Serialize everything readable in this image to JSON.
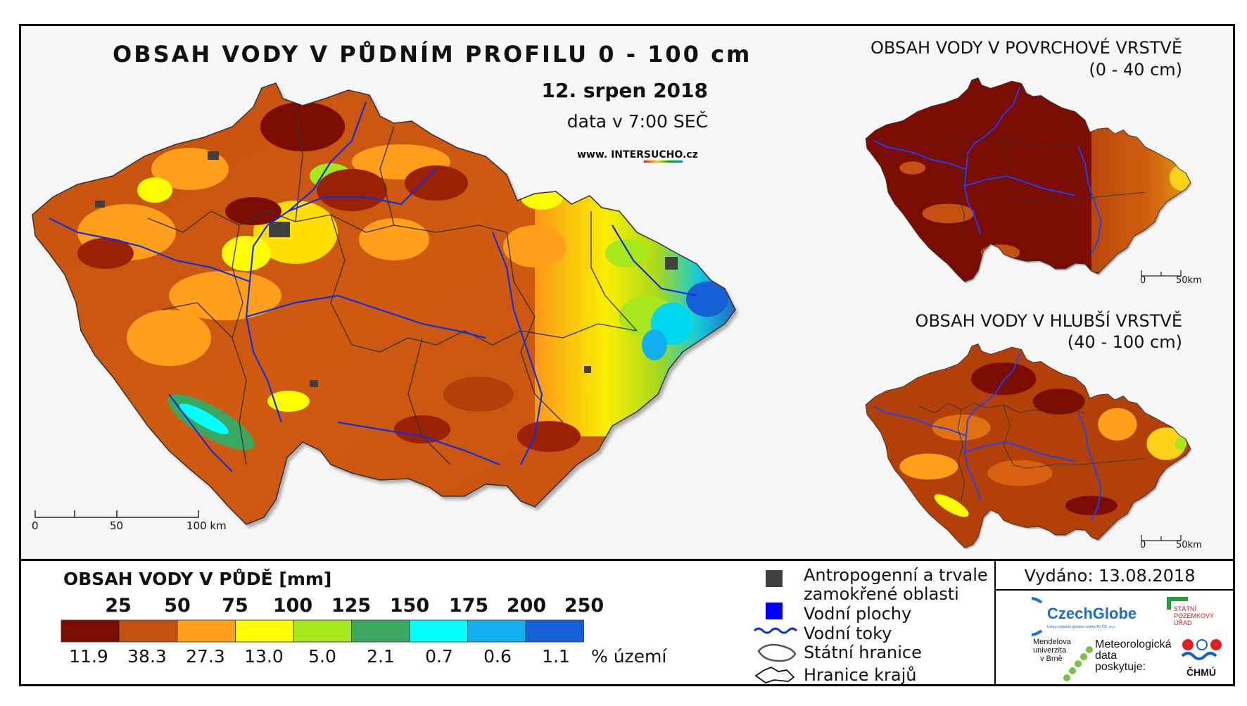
{
  "main_map": {
    "title": "OBSAH VODY V PŮDNÍM PROFILU 0 - 100 cm",
    "date": "12. srpen 2018",
    "time": "data v 7:00 SEČ",
    "website_prefix": "www. INTER",
    "website_emph": "SUCHO",
    "website_suffix": ".cz",
    "scale_labels": [
      "0",
      "50",
      "100 km"
    ]
  },
  "surface_map": {
    "title_line1": "OBSAH VODY V POVRCHOVÉ VRSTVĚ",
    "title_line2": "(0 - 40 cm)",
    "scale_labels": [
      "0",
      "50km"
    ]
  },
  "deep_map": {
    "title_line1": "OBSAH VODY V HLUBŠÍ VRSTVĚ",
    "title_line2": "(40 - 100 cm)",
    "scale_labels": [
      "0",
      "50km"
    ]
  },
  "legend": {
    "title": "OBSAH VODY V PŮDĚ [mm]",
    "breaks": [
      "25",
      "50",
      "75",
      "100",
      "125",
      "150",
      "175",
      "200",
      "250"
    ],
    "classes": [
      {
        "color": "#7a0c02",
        "percent": "11.9"
      },
      {
        "color": "#c4510f",
        "percent": "38.3"
      },
      {
        "color": "#ff9f1a",
        "percent": "27.3"
      },
      {
        "color": "#ffff00",
        "percent": "13.0"
      },
      {
        "color": "#a6e81c",
        "percent": "5.0"
      },
      {
        "color": "#3aa860",
        "percent": "2.1"
      },
      {
        "color": "#00ffff",
        "percent": "0.7"
      },
      {
        "color": "#12b0f0",
        "percent": "0.6"
      },
      {
        "color": "#1560d6",
        "percent": "1.1"
      }
    ],
    "percent_unit": "% území"
  },
  "symbols": {
    "anthropogenic_line1": "Antropogenní a trvale",
    "anthropogenic_line2": "zamokřené oblasti",
    "water_bodies": "Vodní plochy",
    "rivers": "Vodní toky",
    "state_border": "Státní hranice",
    "region_border": "Hranice krajů",
    "anthropogenic_color": "#404040",
    "water_color": "#0000ff",
    "river_color": "#1030e0"
  },
  "issued": "Vydáno: 13.08.2018",
  "logos": {
    "czechglobe": "CzechGlobe",
    "czechglobe_sub": "Ústav výzkumu globální změny AV ČR, v.v.i.",
    "spu_line1": "STÁTNÍ",
    "spu_line2": "POZEMKOVÝ",
    "spu_line3": "ÚŘAD",
    "mendel_line1": "Mendelova",
    "mendel_line2": "univerzita",
    "mendel_line3": "v Brně",
    "meteo_line1": "Meteorologická",
    "meteo_line2": "data",
    "meteo_line3": "poskytuje:",
    "chmu": "ČHMÚ"
  }
}
